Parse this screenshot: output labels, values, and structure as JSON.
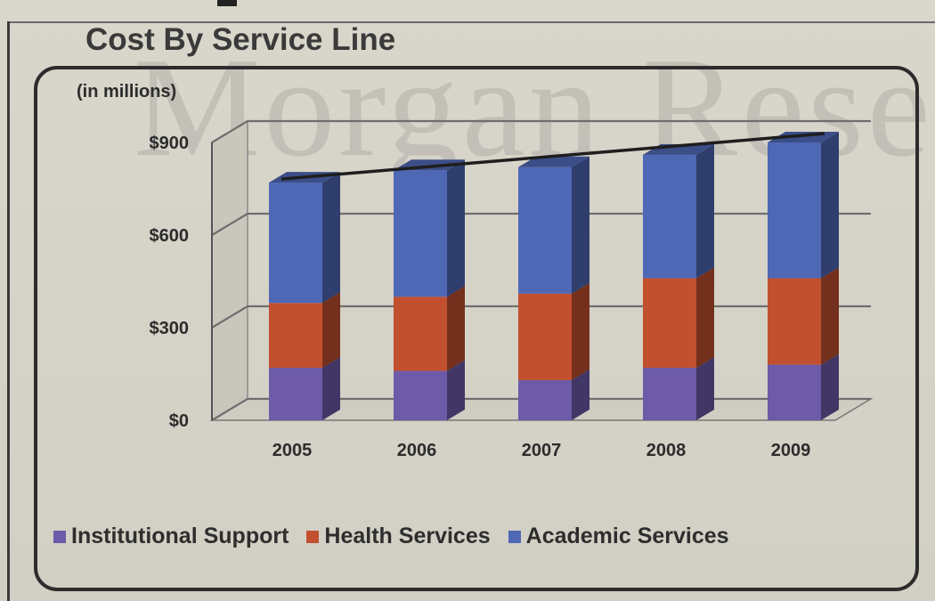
{
  "watermark_text": "Morgan Research",
  "chart_data": {
    "type": "bar",
    "stacked": true,
    "three_d": true,
    "title": "Cost By Service Line",
    "units_label": "(in millions)",
    "categories": [
      "2005",
      "2006",
      "2007",
      "2008",
      "2009"
    ],
    "series": [
      {
        "name": "Institutional Support",
        "color": "#6d5aa8",
        "values": [
          170,
          160,
          130,
          170,
          180
        ]
      },
      {
        "name": "Health Services",
        "color": "#c2502f",
        "values": [
          210,
          240,
          280,
          290,
          280
        ]
      },
      {
        "name": "Academic Services",
        "color": "#4e68b5",
        "values": [
          390,
          410,
          410,
          400,
          440
        ]
      }
    ],
    "legend_order": [
      "Institutional Support",
      "Health Services",
      "Academic Services"
    ],
    "ylim": [
      0,
      900
    ],
    "yticks": [
      {
        "value": 0,
        "label": "$0"
      },
      {
        "value": 300,
        "label": "$300"
      },
      {
        "value": 600,
        "label": "$600"
      },
      {
        "value": 900,
        "label": "$900"
      }
    ],
    "trend_line": true,
    "grid": true,
    "legend_position": "bottom"
  }
}
